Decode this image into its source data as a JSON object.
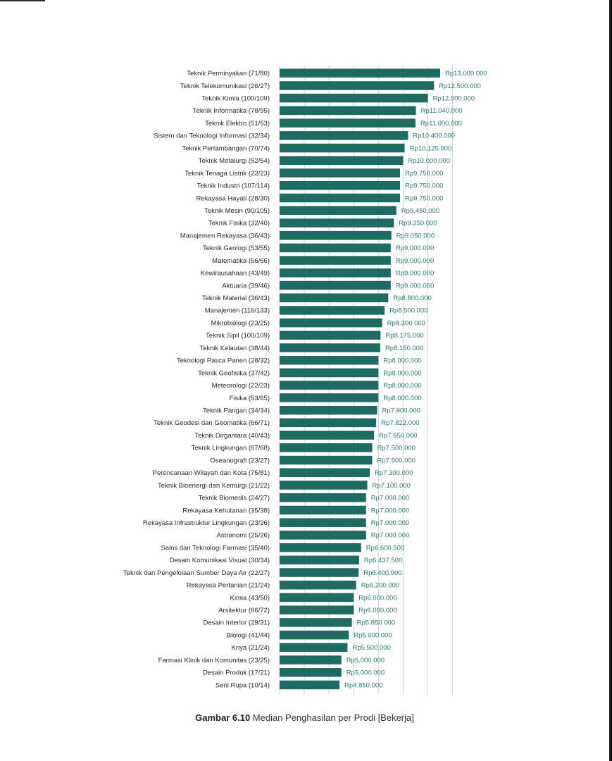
{
  "caption": {
    "figure": "Gambar 6.10",
    "text": " Median Penghasilan per Prodi [Bekerja]"
  },
  "colors": {
    "bar": "#1d6b62",
    "value_text": "#2b7a70",
    "grid": "#d3d3d3"
  },
  "chart_data": {
    "type": "bar",
    "orientation": "horizontal",
    "title": "",
    "xlabel": "",
    "ylabel": "",
    "xlim": [
      0,
      15000000
    ],
    "grid": true,
    "categories": [
      "Teknik Perminyakan (71/80)",
      "Teknik Telekomunikasi (26/27)",
      "Teknik Kimia (100/109)",
      "Teknik Informatika (78/95)",
      "Teknik Elektro (51/53)",
      "Sistem dan Teknologi Informasi (32/34)",
      "Teknik Pertambangan (70/74)",
      "Teknik Metalurgi (52/54)",
      "Teknik Tenaga Listrik (22/23)",
      "Teknik Industri (107/114)",
      "Rekayasa Hayati (28/30)",
      "Teknik Mesin (90/105)",
      "Teknik Fisika (32/40)",
      "Manajemen Rekayasa (36/43)",
      "Teknik Geologi (53/55)",
      "Matematika (56/66)",
      "Kewirausahaan (43/49)",
      "Aktuaria (39/46)",
      "Teknik Material (36/43)",
      "Manajemen (116/133)",
      "Mikrobiologi (23/25)",
      "Teknik Sipil (100/109)",
      "Teknik Kelautan (38/44)",
      "Teknologi Pasca Panen (28/32)",
      "Teknik Geofisika (37/42)",
      "Meteorologi (22/23)",
      "Fisika (53/65)",
      "Teknik Pangan (34/34)",
      "Teknik Geodesi dan Geomatika (66/71)",
      "Teknik Dirgantara (40/43)",
      "Teknik Lingkungan (67/68)",
      "Oseanografi (23/27)",
      "Perencanaan Wilayah dan Kota (75/81)",
      "Teknik Bioenergi dan Kemurgi (21/22)",
      "Teknik Biomedis (24/27)",
      "Rekayasa Kehutanan (35/38)",
      "Rekayasa Infrastruktur Lingkungan (23/26)",
      "Astronomi (25/26)",
      "Sains dan Teknologi Farmasi (35/40)",
      "Desain Komunikasi Visual (30/34)",
      "Teknik dan Pengelolaan Sumber Daya Air (22/27)",
      "Rekayasa Pertanian (21/24)",
      "Kimia (43/50)",
      "Arsitektur (66/72)",
      "Desain Interior (29/31)",
      "Biologi (41/44)",
      "Kriya (21/24)",
      "Farmasi Klinik dan Komunitas (23/25)",
      "Desain Produk (17/21)",
      "Seni Rupa (10/14)"
    ],
    "values": [
      13000000,
      12500000,
      12000000,
      11040000,
      11000000,
      10400000,
      10125000,
      10000000,
      9750000,
      9750000,
      9750000,
      9450000,
      9250000,
      9050000,
      9000000,
      9000000,
      9000000,
      9000000,
      8800000,
      8500000,
      8300000,
      8175000,
      8150000,
      8000000,
      8000000,
      8000000,
      8000000,
      7900000,
      7822000,
      7650000,
      7500000,
      7500000,
      7300000,
      7100000,
      7000000,
      7000000,
      7000000,
      7000000,
      6600500,
      6437500,
      6400000,
      6200000,
      6000000,
      6000000,
      5850000,
      5600000,
      5500000,
      5000000,
      5000000,
      4850000
    ],
    "value_labels": [
      "Rp13.000.000",
      "Rp12.500.000",
      "Rp12.000.000",
      "Rp11.040.000",
      "Rp11.000.000",
      "Rp10.400.000",
      "Rp10.125.000",
      "Rp10.000.000",
      "Rp9.750.000",
      "Rp9.750.000",
      "Rp9.750.000",
      "Rp9.450.000",
      "Rp9.250.000",
      "Rp9.050.000",
      "Rp9.000.000",
      "Rp9.000.000",
      "Rp9.000.000",
      "Rp9.000.000",
      "Rp8.800.000",
      "Rp8.500.000",
      "Rp8.300.000",
      "Rp8.175.000",
      "Rp8.150.000",
      "Rp8.000.000",
      "Rp8.000.000",
      "Rp8.000.000",
      "Rp8.000.000",
      "Rp7.900.000",
      "Rp7.822.000",
      "Rp7.650.000",
      "Rp7.500.000",
      "Rp7.500.000",
      "Rp7.300.000",
      "Rp7.100.000",
      "Rp7.000.000",
      "Rp7.000.000",
      "Rp7.000.000",
      "Rp7.000.000",
      "Rp6.600.500",
      "Rp6.437.500",
      "Rp6.400.000",
      "Rp6.200.000",
      "Rp6.000.000",
      "Rp6.000.000",
      "Rp5.850.000",
      "Rp5.600.000",
      "Rp5.500.000",
      "Rp5.000.000",
      "Rp5.000.000",
      "Rp4.850.000"
    ]
  }
}
